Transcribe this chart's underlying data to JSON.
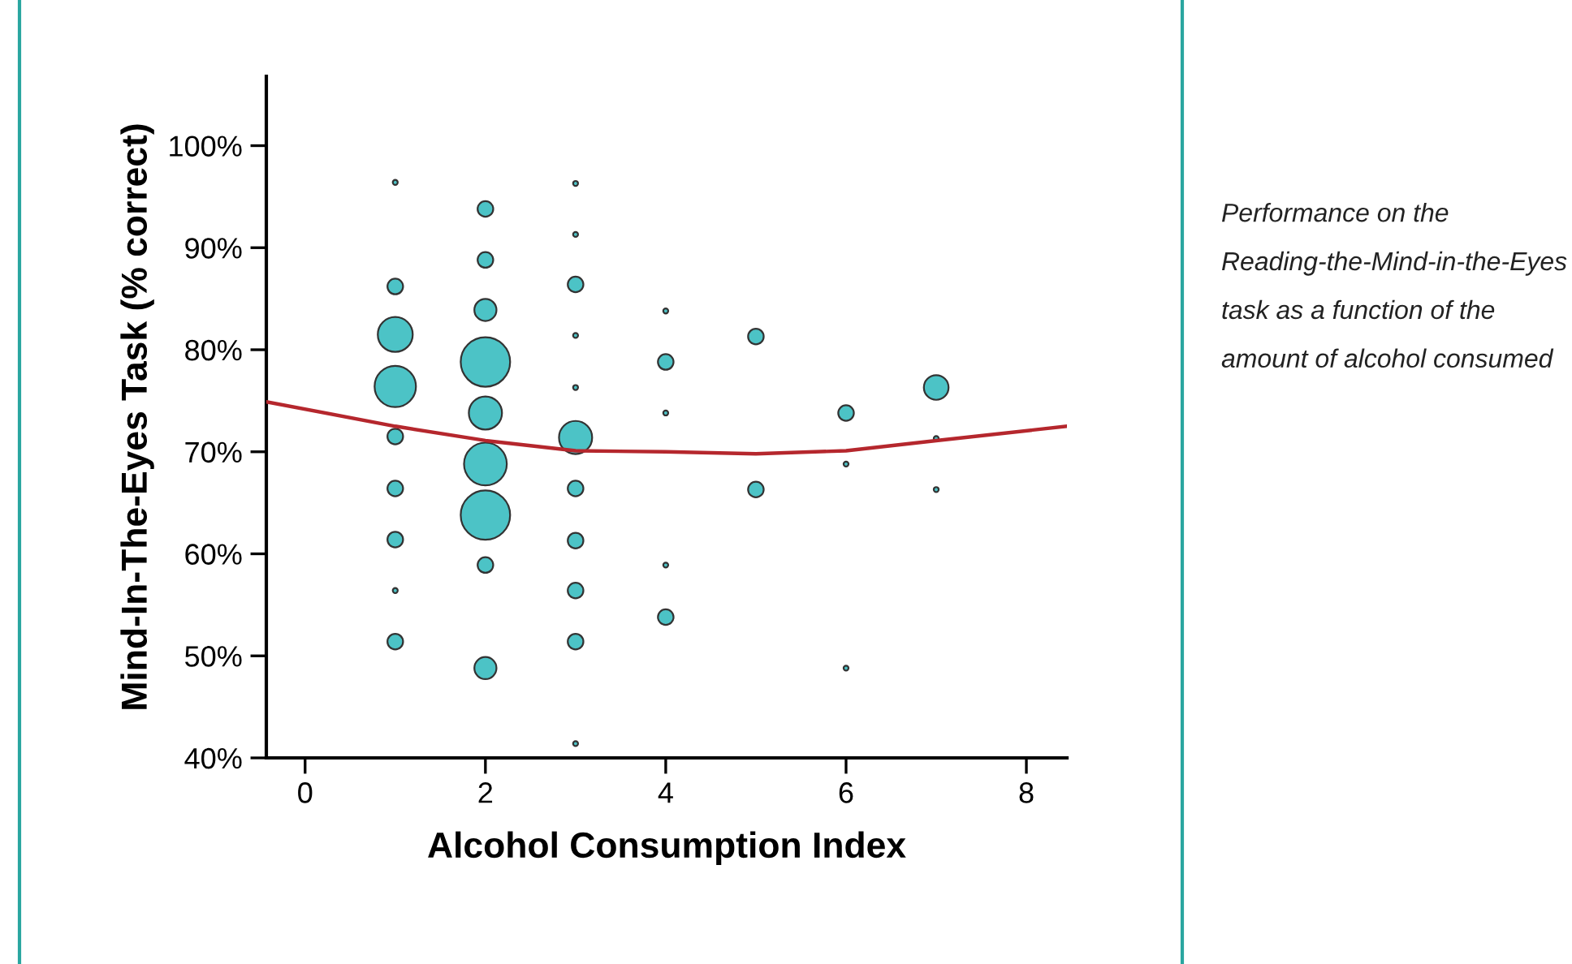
{
  "chart_data": {
    "type": "bubble",
    "xlabel": "Alcohol Consumption Index",
    "ylabel": "Mind-In-The-Eyes Task (% correct)",
    "xlim": [
      -0.43,
      8.45
    ],
    "ylim": [
      40,
      106.8
    ],
    "xticks": [
      0,
      2,
      4,
      6,
      8
    ],
    "yticks": [
      {
        "value": 40,
        "label": "40%"
      },
      {
        "value": 50,
        "label": "50%"
      },
      {
        "value": 60,
        "label": "60%"
      },
      {
        "value": 70,
        "label": "70%"
      },
      {
        "value": 80,
        "label": "80%"
      },
      {
        "value": 90,
        "label": "90%"
      },
      {
        "value": 100,
        "label": "100%"
      }
    ],
    "grid": false,
    "legend": false,
    "annotations": [
      "Performance on the Reading-the-Mind-in-the-Eyes task as a function of the amount of alcohol consumed"
    ],
    "series": [
      {
        "color": "#4cc3c6",
        "x": [
          1,
          1,
          1,
          1,
          1,
          1,
          1,
          1,
          1,
          2,
          2,
          2,
          2,
          2,
          2,
          2,
          2,
          2,
          3,
          3,
          3,
          3,
          3,
          3,
          3,
          3,
          3,
          3,
          3,
          4,
          4,
          4,
          4,
          4,
          5,
          5,
          6,
          6,
          6,
          7,
          7,
          7
        ],
        "values": [
          96.4,
          86.2,
          81.5,
          76.4,
          71.5,
          66.4,
          61.4,
          56.4,
          51.4,
          93.8,
          88.8,
          83.9,
          78.8,
          73.8,
          68.8,
          63.8,
          58.9,
          48.8,
          96.3,
          91.3,
          86.4,
          81.4,
          76.3,
          71.4,
          66.4,
          61.3,
          56.4,
          51.4,
          41.4,
          83.8,
          78.8,
          73.8,
          58.9,
          53.8,
          81.3,
          66.3,
          73.8,
          68.8,
          48.8,
          76.3,
          71.3,
          66.3
        ],
        "sizes": [
          0.01,
          0.1,
          0.5,
          0.7,
          0.1,
          0.1,
          0.1,
          0.01,
          0.1,
          0.1,
          0.1,
          0.2,
          1,
          0.45,
          0.75,
          1,
          0.1,
          0.2,
          0.01,
          0.01,
          0.1,
          0.01,
          0.01,
          0.45,
          0.1,
          0.1,
          0.1,
          0.1,
          0.01,
          0.01,
          0.1,
          0.01,
          0.01,
          0.1,
          0.1,
          0.1,
          0.1,
          0.01,
          0.01,
          0.25,
          0.01,
          0.01
        ]
      },
      {
        "type": "line",
        "color": "#b5272d",
        "x": [
          -0.43,
          1,
          2,
          3,
          4,
          5,
          6,
          7,
          8.45
        ],
        "values": [
          74.9,
          72.5,
          71.1,
          70.1,
          70.0,
          69.8,
          70.1,
          71.1,
          72.5
        ]
      }
    ]
  }
}
